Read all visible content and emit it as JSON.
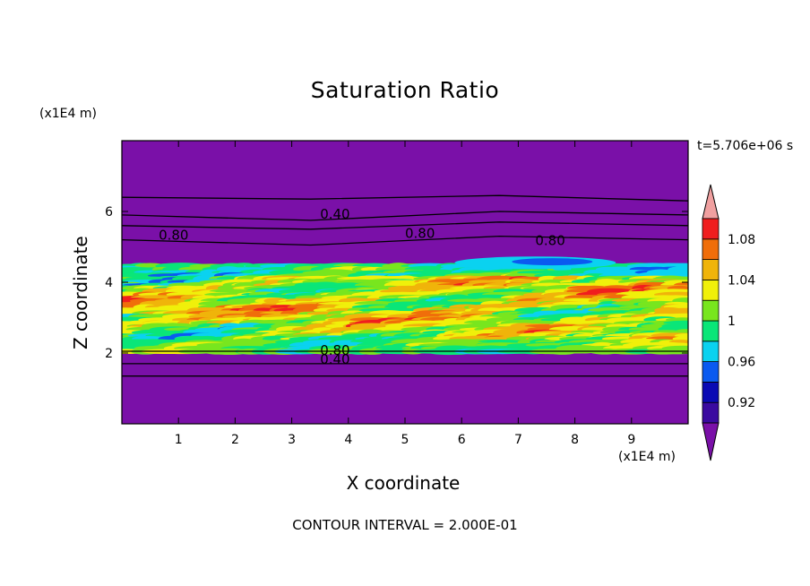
{
  "chart_data": {
    "type": "heatmap",
    "title": "Saturation Ratio",
    "xlabel": "X coordinate",
    "ylabel": "Z coordinate",
    "x_unit_label": "(x1E4 m)",
    "y_unit_label": "(x1E4 m)",
    "time_label": "t=5.706e+06 s",
    "footnote": "CONTOUR INTERVAL = 2.000E-01",
    "xlim": [
      0,
      10
    ],
    "ylim": [
      0,
      8
    ],
    "x_ticks": [
      1,
      2,
      3,
      4,
      5,
      6,
      7,
      8,
      9
    ],
    "y_ticks": [
      2,
      4,
      6
    ],
    "colorbar": {
      "levels": [
        0.9,
        0.92,
        0.94,
        0.96,
        0.98,
        1.0,
        1.02,
        1.04,
        1.06,
        1.08,
        1.1
      ],
      "tick_labels": [
        "0.92",
        "0.96",
        "1",
        "1.04",
        "1.08"
      ],
      "tick_values": [
        0.92,
        0.96,
        1.0,
        1.04,
        1.08
      ],
      "colors": [
        "#3a0aa0",
        "#0a0ab4",
        "#0a5af0",
        "#0ad2f0",
        "#0ae678",
        "#78e61e",
        "#f0f00a",
        "#f0b40a",
        "#f06e0a",
        "#f01e1e"
      ],
      "under_color": "#7a10a8",
      "over_color": "#f0a0a0"
    },
    "background_color": "#7a10a8",
    "contour_labels": [
      {
        "text": "0.40",
        "x": 3.5,
        "z": 5.8
      },
      {
        "text": "0.80",
        "x": 0.65,
        "z": 5.2
      },
      {
        "text": "0.80",
        "x": 5.0,
        "z": 5.25
      },
      {
        "text": "0.80",
        "x": 7.3,
        "z": 5.05
      },
      {
        "text": "0.80",
        "x": 3.5,
        "z": 1.95
      },
      {
        "text": "0.40",
        "x": 3.5,
        "z": 1.7
      }
    ],
    "contour_lines": [
      {
        "level": 0.4,
        "z": [
          6.4,
          6.35,
          6.45,
          6.3
        ]
      },
      {
        "level": 0.4,
        "z": [
          5.9,
          5.75,
          6.0,
          5.9
        ]
      },
      {
        "level": 0.8,
        "z": [
          5.2,
          5.05,
          5.3,
          5.2
        ]
      },
      {
        "level": 0.8,
        "z": [
          5.6,
          5.5,
          5.7,
          5.6
        ]
      },
      {
        "level": 0.8,
        "z": [
          2.05,
          2.05,
          2.05,
          2.05
        ]
      },
      {
        "level": 0.4,
        "z": [
          1.7,
          1.7,
          1.7,
          1.7
        ]
      },
      {
        "level": 0.2,
        "z": [
          1.35,
          1.35,
          1.35,
          1.35
        ]
      }
    ],
    "moist_layer_z": [
      2.0,
      4.5
    ]
  }
}
